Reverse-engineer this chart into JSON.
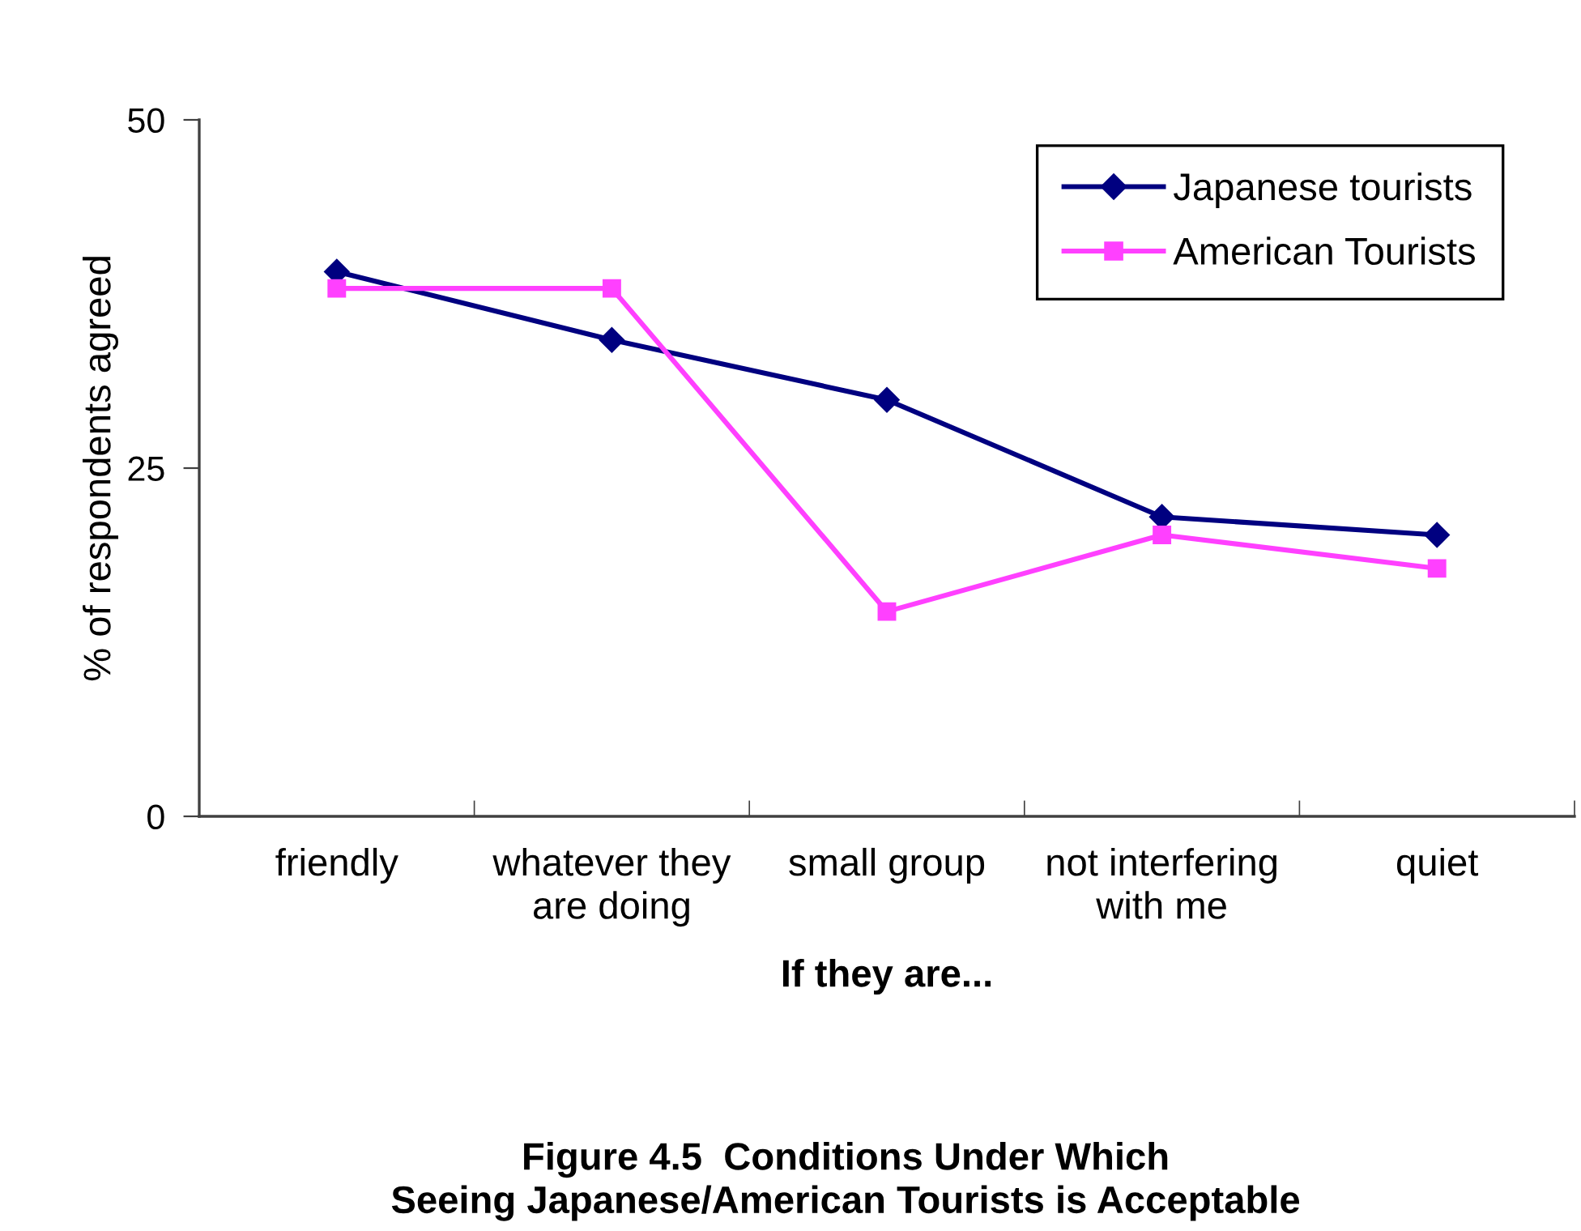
{
  "chart_data": {
    "type": "line",
    "title": "Figure 4.5  Conditions Under Which\nSeeing Japanese/American Tourists is Acceptable",
    "xlabel": "If they are...",
    "ylabel": "% of respondents agreed",
    "categories": [
      "friendly",
      "whatever they\nare doing",
      "small group",
      "not interfering\nwith me",
      "quiet"
    ],
    "series": [
      {
        "name": "Japanese tourists",
        "color": "#000080",
        "marker": "diamond",
        "values": [
          39.1,
          34.2,
          29.9,
          21.5,
          20.2
        ]
      },
      {
        "name": "American Tourists",
        "color": "#ff40ff",
        "marker": "square",
        "values": [
          37.9,
          37.9,
          14.7,
          20.2,
          17.8
        ]
      }
    ],
    "ylim": [
      0,
      50
    ],
    "yticks": [
      0,
      25,
      50
    ],
    "grid": false,
    "legend": "top right",
    "line_style": "solid"
  }
}
